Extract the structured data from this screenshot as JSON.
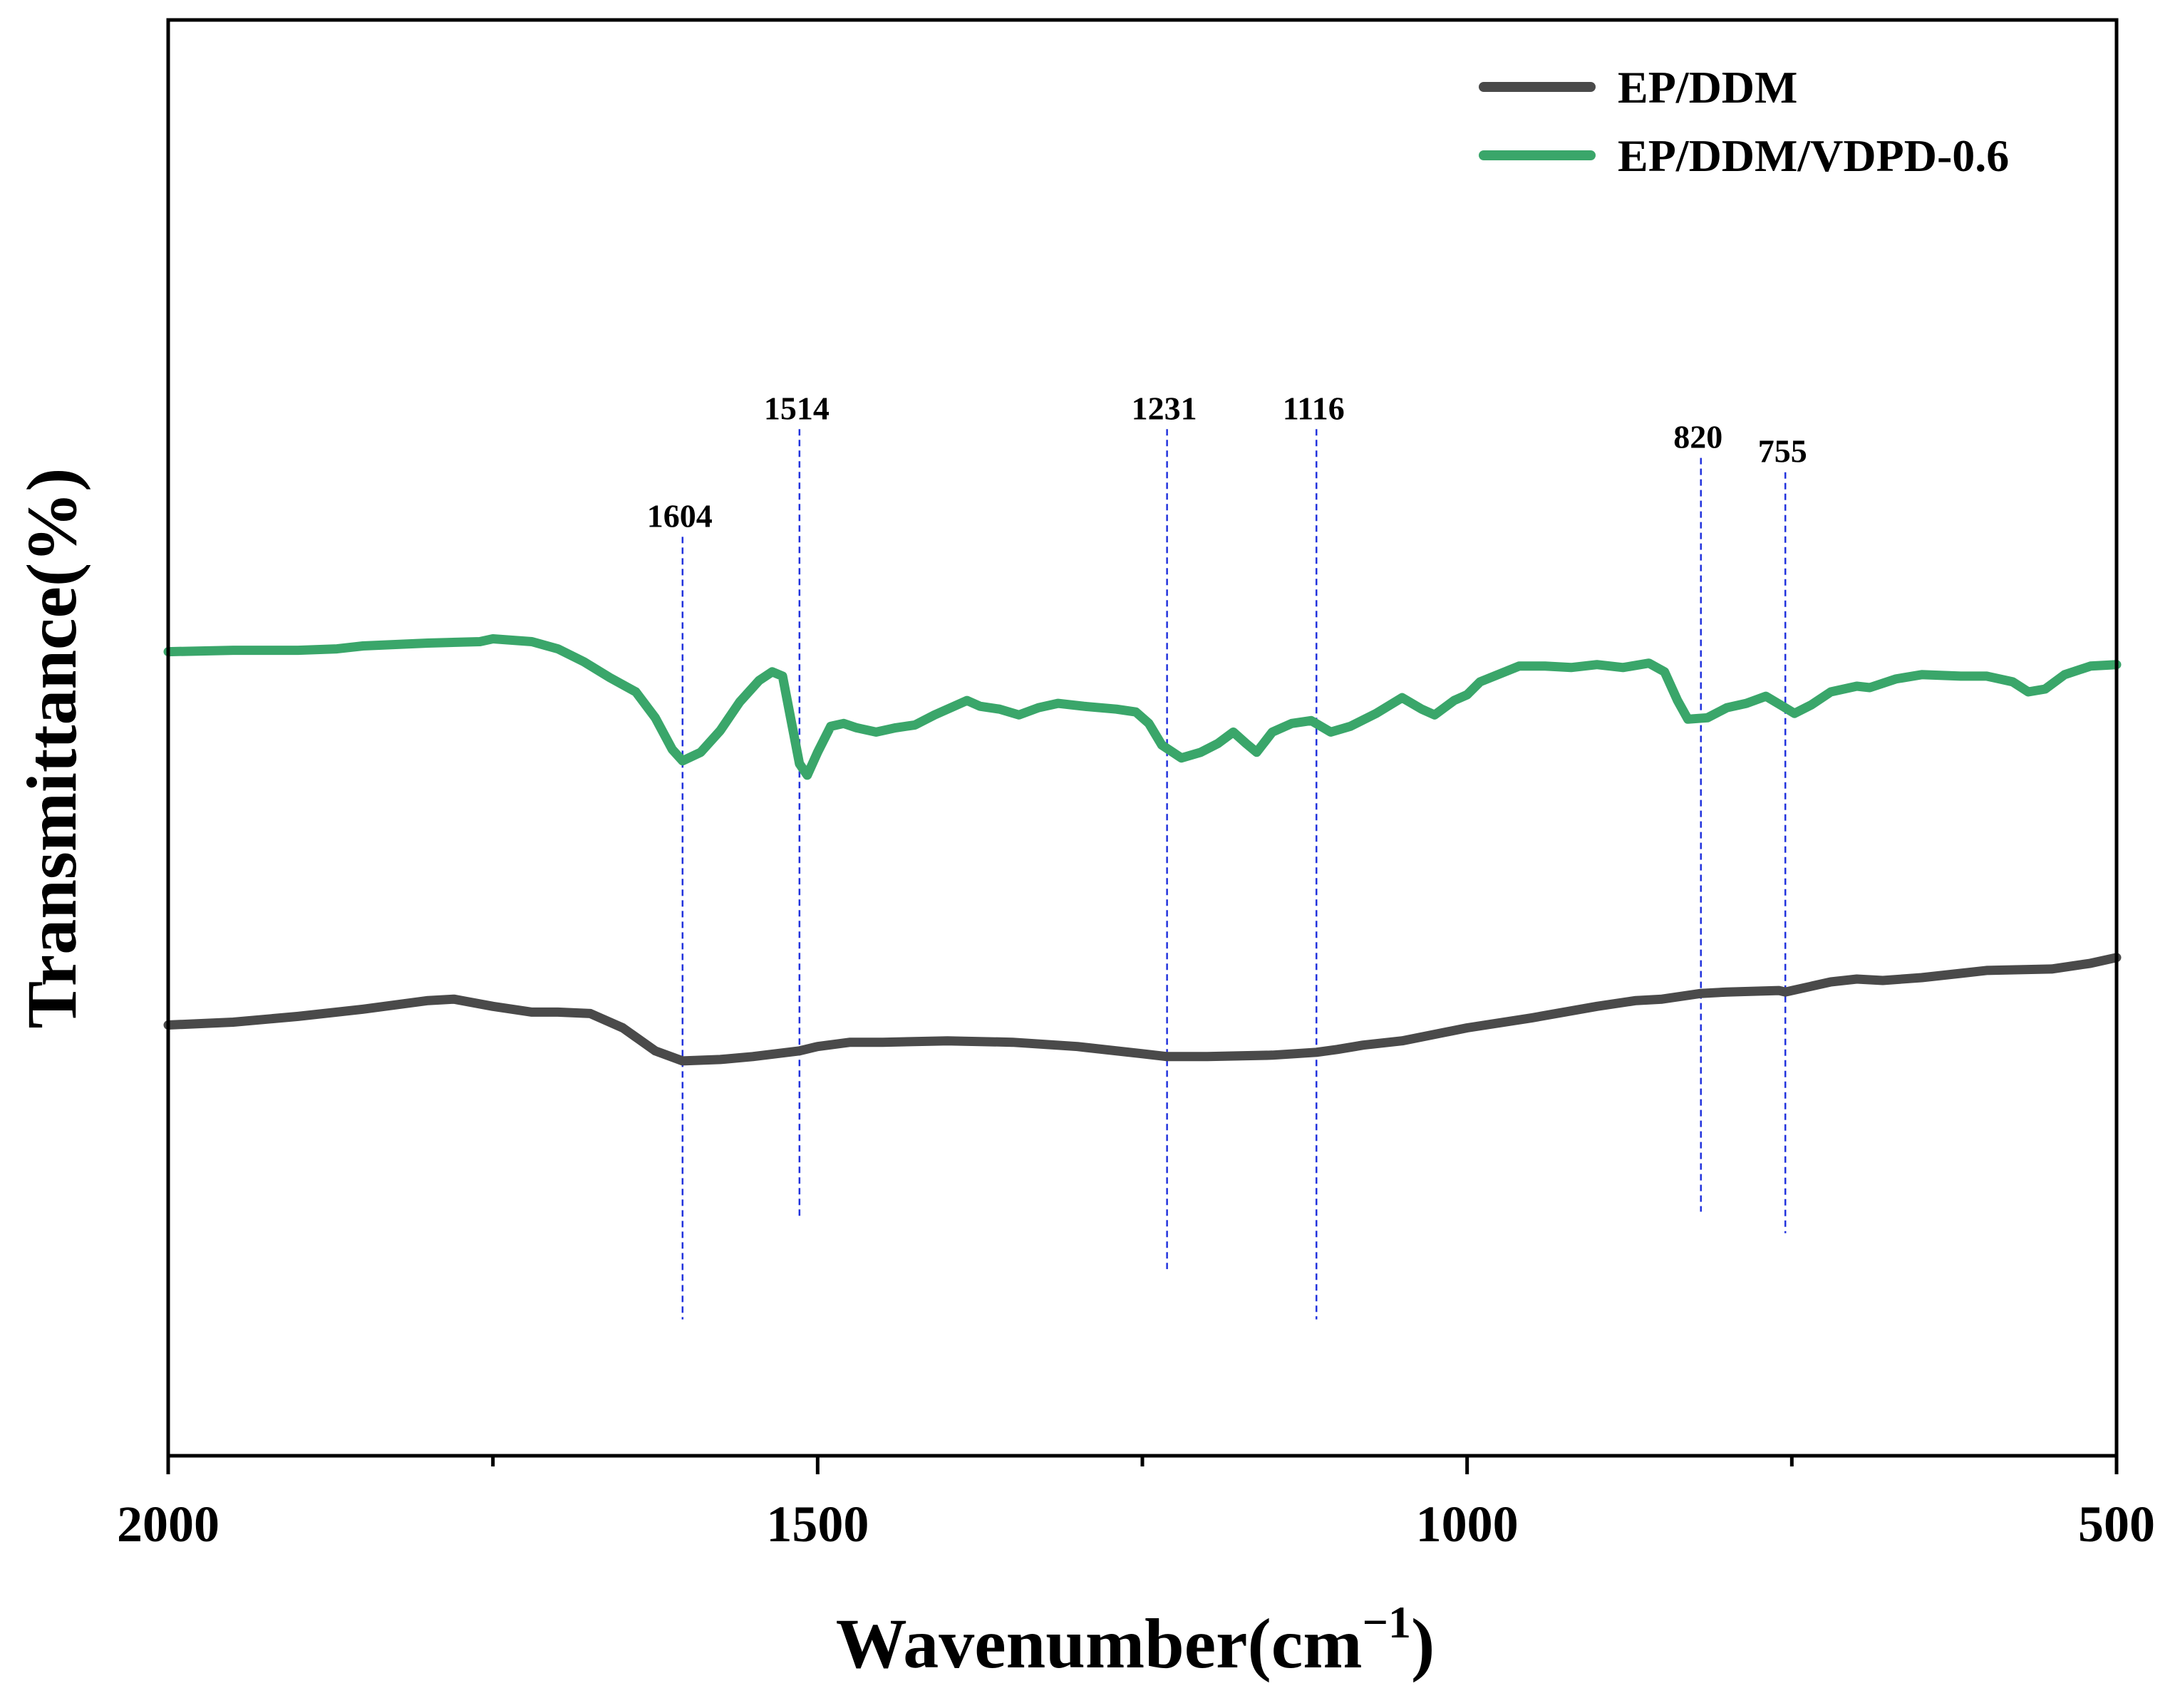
{
  "chart_data": {
    "type": "line",
    "title": "",
    "xlabel": "Wavenumber(cm",
    "xlabel_sup": "−1",
    "xlabel_close": ")",
    "ylabel": "Transmittance(%)",
    "xlim": [
      2000,
      500
    ],
    "ylim": [
      0,
      100
    ],
    "x_ticks": [
      2000,
      1500,
      1000,
      500
    ],
    "x_tick_labels": [
      "2000",
      "1500",
      "1000",
      "500"
    ],
    "x_minor_ticks": [
      1750,
      1250,
      750
    ],
    "legend_position": "top-right",
    "series": [
      {
        "name": "EP/DDM",
        "color": "#4a4a4a",
        "points": [
          [
            2000,
            30.0
          ],
          [
            1950,
            30.2
          ],
          [
            1900,
            30.6
          ],
          [
            1850,
            31.1
          ],
          [
            1800,
            31.7
          ],
          [
            1780,
            31.8
          ],
          [
            1750,
            31.3
          ],
          [
            1720,
            30.9
          ],
          [
            1700,
            30.9
          ],
          [
            1675,
            30.8
          ],
          [
            1650,
            29.8
          ],
          [
            1625,
            28.2
          ],
          [
            1604,
            27.5
          ],
          [
            1575,
            27.6
          ],
          [
            1550,
            27.8
          ],
          [
            1514,
            28.2
          ],
          [
            1500,
            28.5
          ],
          [
            1475,
            28.8
          ],
          [
            1450,
            28.8
          ],
          [
            1400,
            28.9
          ],
          [
            1350,
            28.8
          ],
          [
            1300,
            28.5
          ],
          [
            1250,
            28.0
          ],
          [
            1231,
            27.8
          ],
          [
            1200,
            27.8
          ],
          [
            1150,
            27.9
          ],
          [
            1116,
            28.1
          ],
          [
            1100,
            28.3
          ],
          [
            1080,
            28.6
          ],
          [
            1050,
            28.9
          ],
          [
            1000,
            29.8
          ],
          [
            950,
            30.5
          ],
          [
            900,
            31.3
          ],
          [
            870,
            31.7
          ],
          [
            850,
            31.8
          ],
          [
            820,
            32.2
          ],
          [
            800,
            32.3
          ],
          [
            760,
            32.4
          ],
          [
            755,
            32.3
          ],
          [
            720,
            33.0
          ],
          [
            700,
            33.2
          ],
          [
            680,
            33.1
          ],
          [
            650,
            33.3
          ],
          [
            620,
            33.6
          ],
          [
            600,
            33.8
          ],
          [
            550,
            33.9
          ],
          [
            520,
            34.3
          ],
          [
            500,
            34.7
          ]
        ]
      },
      {
        "name": "EP/DDM/VDPD-0.6",
        "color": "#3aa66a",
        "points": [
          [
            2000,
            56.0
          ],
          [
            1950,
            56.1
          ],
          [
            1900,
            56.1
          ],
          [
            1870,
            56.2
          ],
          [
            1850,
            56.4
          ],
          [
            1800,
            56.6
          ],
          [
            1760,
            56.7
          ],
          [
            1750,
            56.9
          ],
          [
            1720,
            56.7
          ],
          [
            1700,
            56.2
          ],
          [
            1680,
            55.3
          ],
          [
            1660,
            54.2
          ],
          [
            1640,
            53.2
          ],
          [
            1625,
            51.4
          ],
          [
            1612,
            49.2
          ],
          [
            1604,
            48.4
          ],
          [
            1590,
            49.0
          ],
          [
            1575,
            50.5
          ],
          [
            1560,
            52.5
          ],
          [
            1545,
            54.0
          ],
          [
            1535,
            54.6
          ],
          [
            1527,
            54.3
          ],
          [
            1520,
            51.0
          ],
          [
            1514,
            48.2
          ],
          [
            1508,
            47.4
          ],
          [
            1500,
            49.0
          ],
          [
            1490,
            50.8
          ],
          [
            1480,
            51.0
          ],
          [
            1470,
            50.7
          ],
          [
            1455,
            50.4
          ],
          [
            1440,
            50.7
          ],
          [
            1425,
            50.9
          ],
          [
            1410,
            51.6
          ],
          [
            1395,
            52.2
          ],
          [
            1385,
            52.6
          ],
          [
            1375,
            52.2
          ],
          [
            1360,
            52.0
          ],
          [
            1345,
            51.6
          ],
          [
            1330,
            52.1
          ],
          [
            1315,
            52.4
          ],
          [
            1295,
            52.2
          ],
          [
            1270,
            52.0
          ],
          [
            1255,
            51.8
          ],
          [
            1245,
            51.0
          ],
          [
            1235,
            49.5
          ],
          [
            1220,
            48.6
          ],
          [
            1205,
            49.0
          ],
          [
            1192,
            49.6
          ],
          [
            1180,
            50.4
          ],
          [
            1170,
            49.6
          ],
          [
            1162,
            49.0
          ],
          [
            1150,
            50.4
          ],
          [
            1135,
            51.0
          ],
          [
            1120,
            51.2
          ],
          [
            1105,
            50.4
          ],
          [
            1090,
            50.8
          ],
          [
            1070,
            51.7
          ],
          [
            1050,
            52.8
          ],
          [
            1035,
            52.0
          ],
          [
            1025,
            51.6
          ],
          [
            1010,
            52.6
          ],
          [
            1000,
            53.0
          ],
          [
            990,
            53.9
          ],
          [
            960,
            55.0
          ],
          [
            940,
            55.0
          ],
          [
            920,
            54.9
          ],
          [
            900,
            55.1
          ],
          [
            880,
            54.9
          ],
          [
            860,
            55.2
          ],
          [
            848,
            54.6
          ],
          [
            838,
            52.6
          ],
          [
            830,
            51.3
          ],
          [
            815,
            51.4
          ],
          [
            800,
            52.1
          ],
          [
            785,
            52.4
          ],
          [
            770,
            52.9
          ],
          [
            757,
            52.2
          ],
          [
            748,
            51.7
          ],
          [
            735,
            52.3
          ],
          [
            720,
            53.2
          ],
          [
            700,
            53.6
          ],
          [
            690,
            53.5
          ],
          [
            670,
            54.1
          ],
          [
            650,
            54.4
          ],
          [
            620,
            54.3
          ],
          [
            600,
            54.3
          ],
          [
            580,
            53.9
          ],
          [
            568,
            53.2
          ],
          [
            555,
            53.4
          ],
          [
            540,
            54.4
          ],
          [
            520,
            55.0
          ],
          [
            500,
            55.1
          ]
        ]
      }
    ],
    "annotations": [
      {
        "label": "1604",
        "x": 1604,
        "y_top": 64.0,
        "y_bottom": 9.5
      },
      {
        "label": "1514",
        "x": 1514,
        "y_top": 71.5,
        "y_bottom": 16.5
      },
      {
        "label": "1231",
        "x": 1231,
        "y_top": 71.5,
        "y_bottom": 13.0
      },
      {
        "label": "1116",
        "x": 1116,
        "y_top": 71.5,
        "y_bottom": 9.5
      },
      {
        "label": "820",
        "x": 820,
        "y_top": 69.5,
        "y_bottom": 17.0
      },
      {
        "label": "755",
        "x": 755,
        "y_top": 68.5,
        "y_bottom": 15.5
      }
    ]
  }
}
